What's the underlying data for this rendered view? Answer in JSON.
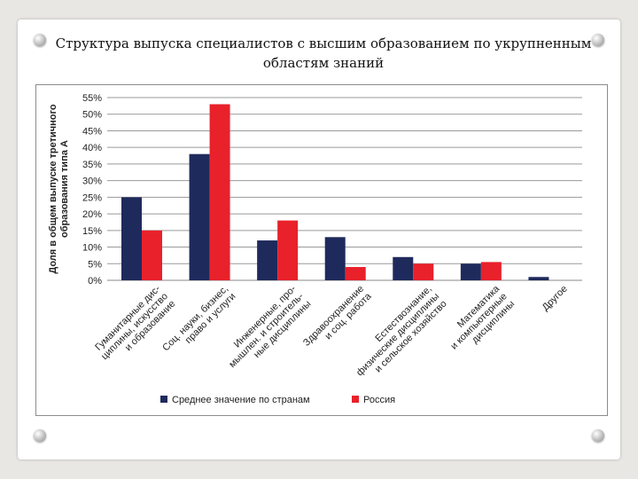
{
  "slide_title_line1": "Структура выпуска специалистов с высшим образованием по укрупненным",
  "slide_title_line2": "областям знаний",
  "chart_data": {
    "type": "bar",
    "title": "Структура выпуска специалистов с высшим образованием по укрупненным областям знаний",
    "ylabel": [
      "Доля в общем выпуске третичного",
      "образования типа А"
    ],
    "xlabel": "",
    "ylim": [
      0,
      55
    ],
    "yticks": [
      0,
      5,
      10,
      15,
      20,
      25,
      30,
      35,
      40,
      45,
      50,
      55
    ],
    "ytick_labels": [
      "0%",
      "5%",
      "10%",
      "15%",
      "20%",
      "25%",
      "30%",
      "35%",
      "40%",
      "45%",
      "50%",
      "55%"
    ],
    "grid": true,
    "legend_position": "bottom",
    "categories": [
      [
        "Гуманитарные дис-",
        "циплины, искусство",
        "и образование"
      ],
      [
        "Соц. науки, бизнес,",
        "право и услуги"
      ],
      [
        "Инженерные, про-",
        "мышлен. и строитель-",
        "ные дисциплины"
      ],
      [
        "Здравоохранение",
        "и соц. работа"
      ],
      [
        "Естествознание,",
        "физические дисциплины",
        "и сельское хозяйство"
      ],
      [
        "Математика",
        "и компьютерные",
        "дисциплины"
      ],
      [
        "Другое"
      ]
    ],
    "series": [
      {
        "name": "Среднее значение по странам",
        "color": "#1f2a5c",
        "values": [
          25,
          38,
          12,
          13,
          7,
          5,
          1
        ]
      },
      {
        "name": "Россия",
        "color": "#e8212b",
        "values": [
          15,
          53,
          18,
          4,
          5,
          5.5,
          0
        ]
      }
    ]
  }
}
